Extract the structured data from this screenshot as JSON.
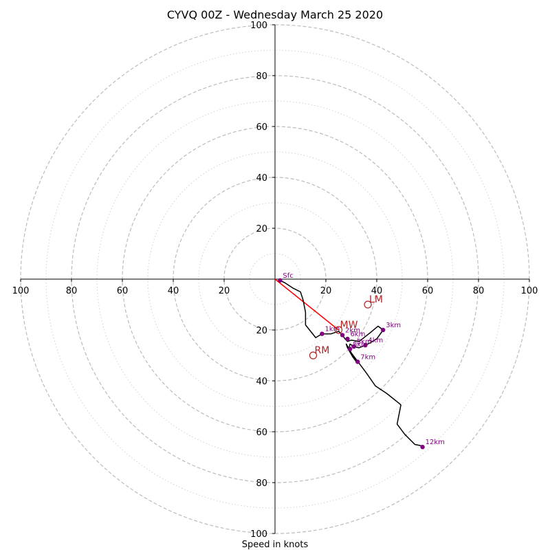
{
  "chart_data": {
    "type": "hodograph",
    "title": "CYVQ 00Z - Wednesday March 25 2020",
    "xlabel": "Speed in knots",
    "range": 100,
    "rings_major": [
      20,
      40,
      60,
      80,
      100
    ],
    "rings_minor": [
      10,
      30,
      50,
      70,
      90
    ],
    "ticks": {
      "left": [
        "100",
        "80",
        "60",
        "40",
        "20"
      ],
      "right": [
        "20",
        "40",
        "60",
        "80",
        "100"
      ],
      "up": [
        "20",
        "40",
        "60",
        "80",
        "100"
      ],
      "down": [
        "20",
        "40",
        "60",
        "80",
        "100"
      ]
    },
    "colors": {
      "trace": "#000000",
      "height_points": "#800080",
      "motion": "#b22222",
      "mean_wind_vector": "#ff0000",
      "grid": "#bbbbbb"
    },
    "trace": [
      [
        2,
        -0.5
      ],
      [
        4,
        -1.5
      ],
      [
        7,
        -3.5
      ],
      [
        10,
        -5
      ],
      [
        11,
        -8
      ],
      [
        12,
        -13
      ],
      [
        12,
        -18
      ],
      [
        16,
        -23
      ],
      [
        18.5,
        -21.5
      ],
      [
        22,
        -21.5
      ],
      [
        25,
        -20.5
      ],
      [
        26.5,
        -22
      ],
      [
        27.5,
        -23.5
      ],
      [
        28.5,
        -24.5
      ],
      [
        30,
        -24
      ],
      [
        33,
        -24.5
      ],
      [
        35,
        -23
      ],
      [
        37.5,
        -21
      ],
      [
        40.5,
        -18.5
      ],
      [
        42.5,
        -20
      ],
      [
        40,
        -23.5
      ],
      [
        37.5,
        -25
      ],
      [
        35.5,
        -26
      ],
      [
        33,
        -27
      ],
      [
        31,
        -26.5
      ],
      [
        29.5,
        -25.5
      ],
      [
        29,
        -27.5
      ],
      [
        30.5,
        -30
      ],
      [
        32,
        -32.5
      ],
      [
        30.5,
        -30.5
      ],
      [
        28.5,
        -27
      ],
      [
        28,
        -25.5
      ],
      [
        30,
        -29
      ],
      [
        33,
        -33
      ],
      [
        36,
        -37
      ],
      [
        39.5,
        -42
      ],
      [
        44,
        -45
      ],
      [
        49,
        -49
      ],
      [
        49.5,
        -49.5
      ],
      [
        48,
        -57
      ],
      [
        51,
        -61
      ],
      [
        55,
        -65
      ],
      [
        57.5,
        -65.5
      ],
      [
        58,
        -66
      ]
    ],
    "height_points": [
      {
        "label": "Sfc",
        "x": 2,
        "y": -0.5
      },
      {
        "label": "1km",
        "x": 18.5,
        "y": -21.5
      },
      {
        "label": "2km",
        "x": 26.5,
        "y": -22
      },
      {
        "label": "3km",
        "x": 42.5,
        "y": -20
      },
      {
        "label": "4km",
        "x": 35.5,
        "y": -26
      },
      {
        "label": "5km",
        "x": 31,
        "y": -26.5
      },
      {
        "label": "6km",
        "x": 28.5,
        "y": -23.5
      },
      {
        "label": "7km",
        "x": 32.5,
        "y": -32.5
      },
      {
        "label": "8km",
        "x": 29.5,
        "y": -27.5
      },
      {
        "label": "12km",
        "x": 58,
        "y": -66
      }
    ],
    "storm_motion": [
      {
        "label": "LM",
        "x": 36.5,
        "y": -10
      },
      {
        "label": "MW",
        "x": 25,
        "y": -20
      },
      {
        "label": "RM",
        "x": 15,
        "y": -30
      }
    ],
    "mean_wind_vector": {
      "from": [
        0,
        0
      ],
      "to": [
        25,
        -20
      ]
    }
  }
}
